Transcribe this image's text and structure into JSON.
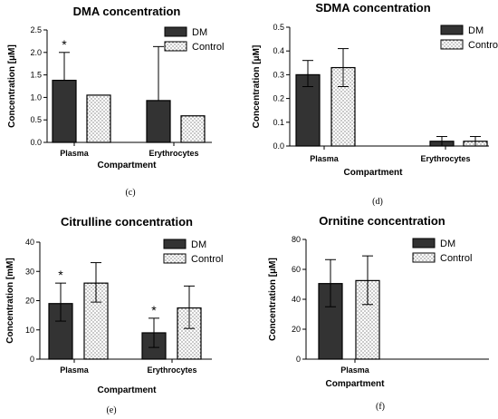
{
  "colors": {
    "dm": "#333333",
    "control_dot": "#444444"
  },
  "legend": [
    "DM",
    "Control"
  ],
  "chart_data": [
    {
      "type": "bar",
      "panel": "(c)",
      "title": "DMA concentration",
      "ylabel": "Concentration [μM]",
      "xlabel": "Compartment",
      "ylim": [
        0,
        2.5
      ],
      "yticks": [
        "0.0",
        "0.5",
        "1.0",
        "1.5",
        "2.0",
        "2.5"
      ],
      "categories": [
        "Plasma",
        "Erythrocytes"
      ],
      "series": [
        {
          "name": "DM",
          "values": [
            1.38,
            0.93
          ],
          "err_up": [
            2.0,
            2.13
          ],
          "err_down": [
            null,
            null
          ],
          "stars": [
            true,
            false
          ]
        },
        {
          "name": "Control",
          "values": [
            1.05,
            0.59
          ],
          "err_up": [
            null,
            null
          ],
          "err_down": [
            null,
            null
          ],
          "stars": [
            false,
            false
          ]
        }
      ]
    },
    {
      "type": "bar",
      "panel": "(d)",
      "title": "SDMA concentration",
      "ylabel": "Concentration [μM]",
      "xlabel": "Compartment",
      "ylim": [
        0,
        0.5
      ],
      "yticks": [
        "0.0",
        "0.1",
        "0.2",
        "0.3",
        "0.4",
        "0.5"
      ],
      "categories": [
        "Plasma",
        "Erythrocytes"
      ],
      "series": [
        {
          "name": "DM",
          "values": [
            0.3,
            0.02
          ],
          "err_up": [
            0.36,
            0.04
          ],
          "err_down": [
            0.25,
            0.0
          ],
          "stars": [
            false,
            false
          ]
        },
        {
          "name": "Control",
          "values": [
            0.33,
            0.02
          ],
          "err_up": [
            0.41,
            0.04
          ],
          "err_down": [
            0.25,
            0.0
          ],
          "stars": [
            false,
            false
          ]
        }
      ]
    },
    {
      "type": "bar",
      "panel": "(e)",
      "title": "Citrulline concentration",
      "ylabel": "Concentration [mM]",
      "xlabel": "Compartment",
      "ylim": [
        0,
        40
      ],
      "yticks": [
        "0",
        "10",
        "20",
        "30",
        "40"
      ],
      "categories": [
        "Plasma",
        "Erythrocytes"
      ],
      "series": [
        {
          "name": "DM",
          "values": [
            19.0,
            9.0
          ],
          "err_up": [
            26.0,
            14.0
          ],
          "err_down": [
            13.0,
            4.0
          ],
          "stars": [
            true,
            true
          ]
        },
        {
          "name": "Control",
          "values": [
            26.0,
            17.5
          ],
          "err_up": [
            33.0,
            25.0
          ],
          "err_down": [
            19.5,
            10.5
          ],
          "stars": [
            false,
            false
          ]
        }
      ]
    },
    {
      "type": "bar",
      "panel": "(f)",
      "title": "Ornitine concentration",
      "ylabel": "Concentration [μM]",
      "xlabel": "Compartment",
      "ylim": [
        0,
        80
      ],
      "yticks": [
        "0",
        "20",
        "40",
        "60",
        "80"
      ],
      "categories": [
        "Plasma"
      ],
      "series": [
        {
          "name": "DM",
          "values": [
            50.5
          ],
          "err_up": [
            66.5
          ],
          "err_down": [
            35.0
          ],
          "stars": [
            false
          ]
        },
        {
          "name": "Control",
          "values": [
            52.5
          ],
          "err_up": [
            69.0
          ],
          "err_down": [
            36.5
          ],
          "stars": [
            false
          ]
        }
      ]
    }
  ]
}
